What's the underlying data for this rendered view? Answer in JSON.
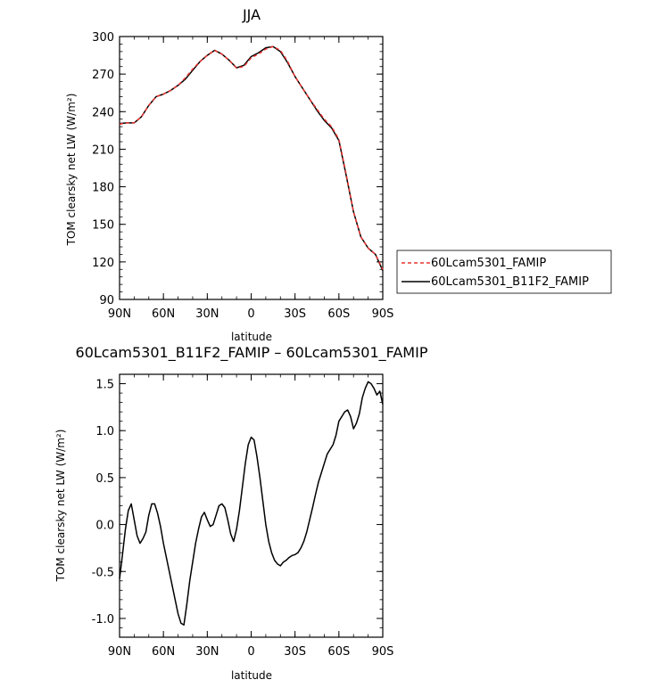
{
  "chart_data": [
    {
      "type": "line",
      "title": "JJA",
      "xlabel": "latitude",
      "ylabel": "TOM clearsky net LW (W/m²)",
      "xlim": [
        90,
        -90
      ],
      "ylim": [
        90,
        300
      ],
      "x_tick_values": [
        90,
        60,
        30,
        0,
        -30,
        -60,
        -90
      ],
      "x_tick_labels": [
        "90N",
        "60N",
        "30N",
        "0",
        "30S",
        "60S",
        "90S"
      ],
      "y_ticks": [
        90,
        120,
        150,
        180,
        210,
        240,
        270,
        300
      ],
      "grid": false,
      "legend_position": "right",
      "x": [
        90,
        85,
        80,
        75,
        70,
        65,
        60,
        55,
        50,
        45,
        40,
        35,
        30,
        25,
        20,
        15,
        10,
        5,
        0,
        -5,
        -10,
        -15,
        -20,
        -25,
        -30,
        -35,
        -40,
        -45,
        -50,
        -55,
        -60,
        -65,
        -70,
        -75,
        -80,
        -85,
        -90
      ],
      "series": [
        {
          "name": "60Lcam5301_FAMIP",
          "color": "#e8332f",
          "dash": "dashed",
          "values": [
            230,
            231,
            231,
            236,
            245,
            252,
            254,
            257,
            261,
            267,
            274,
            280,
            285,
            289,
            286,
            281,
            275,
            276,
            283,
            286,
            290,
            292,
            289,
            280,
            268,
            259,
            250,
            242,
            234,
            228,
            218,
            190,
            160,
            140,
            131,
            126,
            114
          ]
        },
        {
          "name": "60Lcam5301_B11F2_FAMIP",
          "color": "#000000",
          "dash": "solid",
          "values": [
            230.5,
            231,
            231,
            236,
            245,
            252,
            254,
            257,
            261,
            266,
            273,
            280,
            285,
            289,
            286,
            281,
            275,
            277,
            284,
            287,
            291,
            292,
            288,
            279,
            268,
            259,
            250,
            241,
            233,
            227,
            217,
            189,
            160,
            140,
            131,
            126,
            113
          ]
        }
      ]
    },
    {
      "type": "line",
      "title": "60Lcam5301_B11F2_FAMIP – 60Lcam5301_FAMIP",
      "xlabel": "latitude",
      "ylabel": "TOM clearsky net LW (W/m²)",
      "xlim": [
        90,
        -90
      ],
      "ylim": [
        -1.2,
        1.6
      ],
      "x_tick_values": [
        90,
        60,
        30,
        0,
        -30,
        -60,
        -90
      ],
      "x_tick_labels": [
        "90N",
        "60N",
        "30N",
        "0",
        "30S",
        "60S",
        "90S"
      ],
      "y_ticks": [
        -1.0,
        -0.5,
        0.0,
        0.5,
        1.0,
        1.5
      ],
      "y_tick_labels": [
        "-1.0",
        "-0.5",
        "0.0",
        "0.5",
        "1.0",
        "1.5"
      ],
      "grid": false,
      "x": [
        90,
        88,
        86,
        84,
        82,
        80,
        78,
        76,
        74,
        72,
        70,
        68,
        66,
        64,
        62,
        60,
        58,
        56,
        54,
        52,
        50,
        48,
        46,
        44,
        42,
        40,
        38,
        36,
        34,
        32,
        30,
        28,
        26,
        24,
        22,
        20,
        18,
        16,
        14,
        12,
        10,
        8,
        6,
        4,
        2,
        0,
        -2,
        -4,
        -6,
        -8,
        -10,
        -12,
        -14,
        -16,
        -18,
        -20,
        -22,
        -24,
        -26,
        -28,
        -30,
        -32,
        -34,
        -36,
        -38,
        -40,
        -42,
        -44,
        -46,
        -48,
        -50,
        -52,
        -54,
        -56,
        -58,
        -60,
        -62,
        -64,
        -66,
        -68,
        -70,
        -72,
        -74,
        -76,
        -78,
        -80,
        -82,
        -84,
        -86,
        -88,
        -90
      ],
      "series": [
        {
          "name": "",
          "color": "#000000",
          "values": [
            -0.58,
            -0.32,
            -0.05,
            0.15,
            0.22,
            0.05,
            -0.12,
            -0.2,
            -0.15,
            -0.08,
            0.1,
            0.22,
            0.22,
            0.12,
            -0.02,
            -0.2,
            -0.35,
            -0.5,
            -0.65,
            -0.8,
            -0.95,
            -1.05,
            -1.07,
            -0.85,
            -0.6,
            -0.4,
            -0.2,
            -0.05,
            0.08,
            0.13,
            0.05,
            -0.02,
            0.0,
            0.1,
            0.2,
            0.22,
            0.18,
            0.05,
            -0.1,
            -0.18,
            -0.05,
            0.15,
            0.4,
            0.65,
            0.85,
            0.93,
            0.9,
            0.72,
            0.5,
            0.25,
            0.0,
            -0.18,
            -0.3,
            -0.38,
            -0.42,
            -0.44,
            -0.4,
            -0.38,
            -0.35,
            -0.33,
            -0.32,
            -0.3,
            -0.25,
            -0.18,
            -0.08,
            0.05,
            0.18,
            0.32,
            0.45,
            0.55,
            0.65,
            0.75,
            0.8,
            0.85,
            0.95,
            1.1,
            1.15,
            1.2,
            1.22,
            1.15,
            1.02,
            1.08,
            1.18,
            1.35,
            1.45,
            1.52,
            1.5,
            1.45,
            1.38,
            1.42,
            1.28
          ]
        }
      ]
    }
  ]
}
